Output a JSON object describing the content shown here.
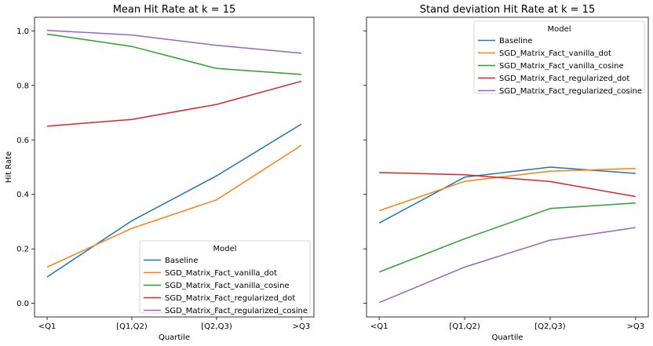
{
  "chart_data": [
    {
      "type": "line",
      "title": "Mean Hit Rate at k = 15",
      "xlabel": "Quartile",
      "ylabel": "Hit Rate",
      "categories": [
        "<Q1",
        "[Q1,Q2)",
        "[Q2,Q3)",
        ">Q3"
      ],
      "ylim": [
        -0.05,
        1.05
      ],
      "yticks": [
        "0.0",
        "0.2",
        "0.4",
        "0.6",
        "0.8",
        "1.0"
      ],
      "legend_title": "Model",
      "legend_position": "lower-right",
      "series": [
        {
          "name": "Baseline",
          "color": "#1f77b4",
          "values": [
            0.097,
            0.303,
            0.468,
            0.658
          ]
        },
        {
          "name": "SGD_Matrix_Fact_vanilla_dot",
          "color": "#ff7f0e",
          "values": [
            0.133,
            0.275,
            0.38,
            0.58
          ]
        },
        {
          "name": "SGD_Matrix_Fact_vanilla_cosine",
          "color": "#2ca02c",
          "values": [
            0.988,
            0.943,
            0.862,
            0.84
          ]
        },
        {
          "name": "SGD_Matrix_Fact_regularized_dot",
          "color": "#d62728",
          "values": [
            0.65,
            0.675,
            0.73,
            0.815
          ]
        },
        {
          "name": "SGD_Matrix_Fact_regularized_cosine",
          "color": "#9467bd",
          "values": [
            1.002,
            0.985,
            0.947,
            0.918
          ]
        }
      ]
    },
    {
      "type": "line",
      "title": "Stand deviation Hit Rate at k = 15",
      "xlabel": "Quartile",
      "ylabel": "",
      "categories": [
        "<Q1",
        "[Q1,Q2)",
        "[Q2,Q3)",
        ">Q3"
      ],
      "ylim": [
        -0.05,
        1.05
      ],
      "shared_y": true,
      "legend_title": "Model",
      "legend_position": "upper-right",
      "series": [
        {
          "name": "Baseline",
          "color": "#1f77b4",
          "values": [
            0.295,
            0.463,
            0.5,
            0.477
          ]
        },
        {
          "name": "SGD_Matrix_Fact_vanilla_dot",
          "color": "#ff7f0e",
          "values": [
            0.34,
            0.448,
            0.485,
            0.495
          ]
        },
        {
          "name": "SGD_Matrix_Fact_vanilla_cosine",
          "color": "#2ca02c",
          "values": [
            0.115,
            0.237,
            0.348,
            0.368
          ]
        },
        {
          "name": "SGD_Matrix_Fact_regularized_dot",
          "color": "#d62728",
          "values": [
            0.48,
            0.472,
            0.447,
            0.392
          ]
        },
        {
          "name": "SGD_Matrix_Fact_regularized_cosine",
          "color": "#9467bd",
          "values": [
            0.003,
            0.133,
            0.232,
            0.278
          ]
        }
      ]
    }
  ]
}
